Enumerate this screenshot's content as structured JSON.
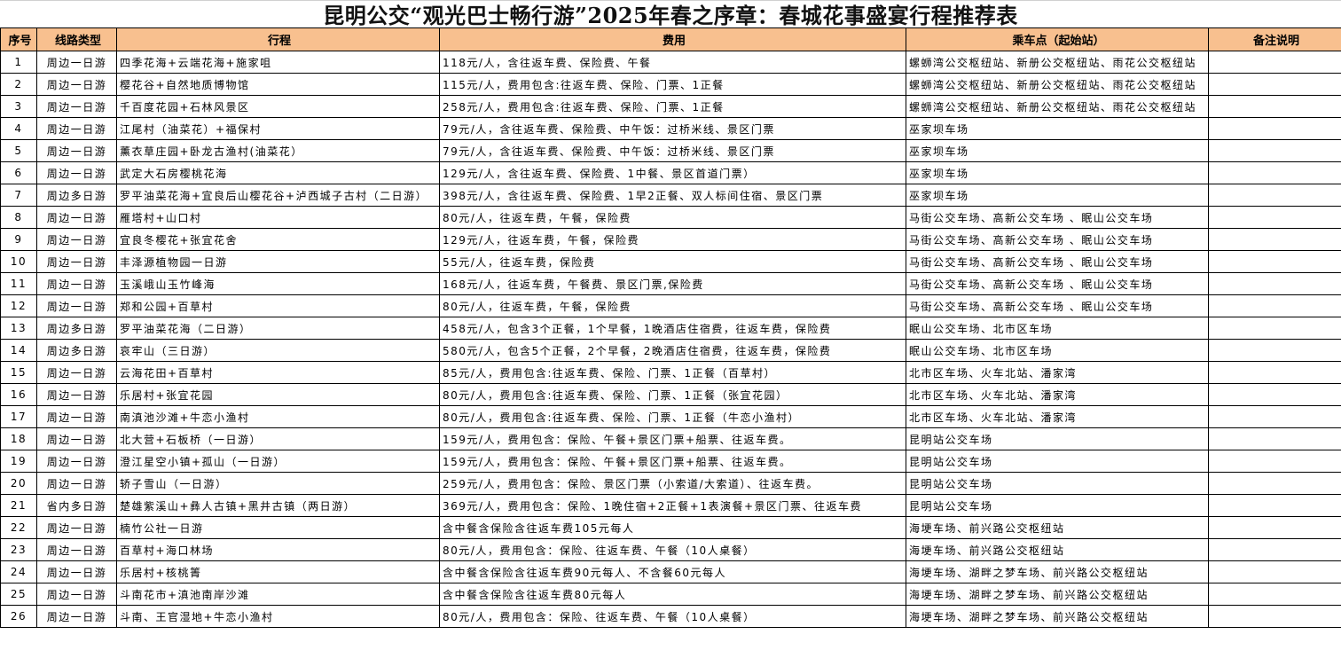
{
  "title": "昆明公交“观光巴士畅行游”2025年春之序章：春城花事盛宴行程推荐表",
  "header_color": "#F8C08F",
  "columns": [
    "序号",
    "线路类型",
    "行程",
    "费用",
    "乘车点（起始站）",
    "备注说明"
  ],
  "rows": [
    [
      "1",
      "周边一日游",
      "四季花海+云端花海+施家咀",
      "118元/人，含往返车费、保险费、午餐",
      "螺蛳湾公交枢纽站、新册公交枢纽站、雨花公交枢纽站",
      ""
    ],
    [
      "2",
      "周边一日游",
      "樱花谷+自然地质博物馆",
      "115元/人，费用包含:往返车费、保险、门票、1正餐",
      "螺蛳湾公交枢纽站、新册公交枢纽站、雨花公交枢纽站",
      ""
    ],
    [
      "3",
      "周边一日游",
      "千百度花园+石林风景区",
      "258元/人，费用包含:往返车费、保险、门票、1正餐",
      "螺蛳湾公交枢纽站、新册公交枢纽站、雨花公交枢纽站",
      ""
    ],
    [
      "4",
      "周边一日游",
      "江尾村（油菜花）+福保村",
      "79元/人，含往返车费、保险费、中午饭：过桥米线、景区门票",
      "巫家坝车场",
      ""
    ],
    [
      "5",
      "周边一日游",
      "薰衣草庄园+卧龙古渔村(油菜花）",
      "79元/人，含往返车费、保险费、中午饭：过桥米线、景区门票",
      "巫家坝车场",
      ""
    ],
    [
      "6",
      "周边一日游",
      "武定大石房樱桃花海",
      "129元/人，含往返车费、保险费、1中餐、景区首道门票）",
      "巫家坝车场",
      ""
    ],
    [
      "7",
      "周边多日游",
      "罗平油菜花海+宜良后山樱花谷+泸西城子古村（二日游）",
      "398元/人，含往返车费、保险费、1早2正餐、双人标间住宿、景区门票",
      "巫家坝车场",
      ""
    ],
    [
      "8",
      "周边一日游",
      "雁塔村+山口村",
      "80元/人，往返车费，午餐，保险费",
      "马街公交车场、高新公交车场 、眠山公交车场",
      ""
    ],
    [
      "9",
      "周边一日游",
      "宜良冬樱花+张宜花舍",
      "129元/人，往返车费，午餐，保险费",
      "马街公交车场、高新公交车场 、眠山公交车场",
      ""
    ],
    [
      "10",
      "周边一日游",
      "丰泽源植物园一日游",
      "55元/人，往返车费，保险费",
      "马街公交车场、高新公交车场 、眠山公交车场",
      ""
    ],
    [
      "11",
      "周边一日游",
      "玉溪峨山玉竹峰海",
      "168元/人，往返车费，午餐费、景区门票,保险费",
      "马街公交车场、高新公交车场 、眠山公交车场",
      ""
    ],
    [
      "12",
      "周边一日游",
      "郑和公园+百草村",
      "80元/人，往返车费，午餐，保险费",
      "马街公交车场、高新公交车场 、眠山公交车场",
      ""
    ],
    [
      "13",
      "周边多日游",
      "罗平油菜花海（二日游）",
      "458元/人，包含3个正餐，1个早餐，1晚酒店住宿费，往返车费，保险费",
      "眠山公交车场、北市区车场",
      ""
    ],
    [
      "14",
      "周边多日游",
      "哀牢山（三日游）",
      "580元/人，包含5个正餐，2个早餐，2晚酒店住宿费，往返车费，保险费",
      "眠山公交车场、北市区车场",
      ""
    ],
    [
      "15",
      "周边一日游",
      "云海花田+百草村",
      "85元/人，费用包含:往返车费、保险、门票、1正餐（百草村）",
      "北市区车场、火车北站、潘家湾",
      ""
    ],
    [
      "16",
      "周边一日游",
      "乐居村+张宜花园",
      "80元/人，费用包含:往返车费、保险、门票、1正餐（张宜花园）",
      "北市区车场、火车北站、潘家湾",
      ""
    ],
    [
      "17",
      "周边一日游",
      "南滇池沙滩+牛恋小渔村",
      "80元/人，费用包含:往返车费、保险、门票、1正餐（牛恋小渔村）",
      "北市区车场、火车北站、潘家湾",
      ""
    ],
    [
      "18",
      "周边一日游",
      "北大营+石板桥（一日游）",
      "159元/人，费用包含：保险、午餐+景区门票+船票、往返车费。",
      "昆明站公交车场",
      ""
    ],
    [
      "19",
      "周边一日游",
      "澄江星空小镇+孤山（一日游）",
      "159元/人，费用包含：保险、午餐+景区门票+船票、往返车费。",
      "昆明站公交车场",
      ""
    ],
    [
      "20",
      "周边一日游",
      "轿子雪山（一日游）",
      "259元/人，费用包含：保险、景区门票（小索道/大索道）、往返车费。",
      "昆明站公交车场",
      ""
    ],
    [
      "21",
      "省内多日游",
      "楚雄紫溪山+彝人古镇+黑井古镇（两日游）",
      "369元/人，费用包含：保险、1晚住宿+2正餐+1表演餐+景区门票、往返车费",
      "昆明站公交车场",
      ""
    ],
    [
      "22",
      "周边一日游",
      "楠竹公社一日游",
      "含中餐含保险含往返车费105元每人",
      "海埂车场、前兴路公交枢纽站",
      ""
    ],
    [
      "23",
      "周边一日游",
      "百草村+海口林场",
      "80元/人，费用包含：保险、往返车费、午餐（10人桌餐）",
      "海埂车场、前兴路公交枢纽站",
      ""
    ],
    [
      "24",
      "周边一日游",
      "乐居村+核桃箐",
      "含中餐含保险含往返车费90元每人、不含餐60元每人",
      "海埂车场、湖畔之梦车场、前兴路公交枢纽站",
      ""
    ],
    [
      "25",
      "周边一日游",
      "斗南花市+滇池南岸沙滩",
      "含中餐含保险含往返车费80元每人",
      "海埂车场、湖畔之梦车场、前兴路公交枢纽站",
      ""
    ],
    [
      "26",
      "周边一日游",
      "斗南、王官湿地+牛恋小渔村",
      "80元/人，费用包含：保险、往返车费、午餐（10人桌餐）",
      "海埂车场、湖畔之梦车场、前兴路公交枢纽站",
      ""
    ]
  ]
}
